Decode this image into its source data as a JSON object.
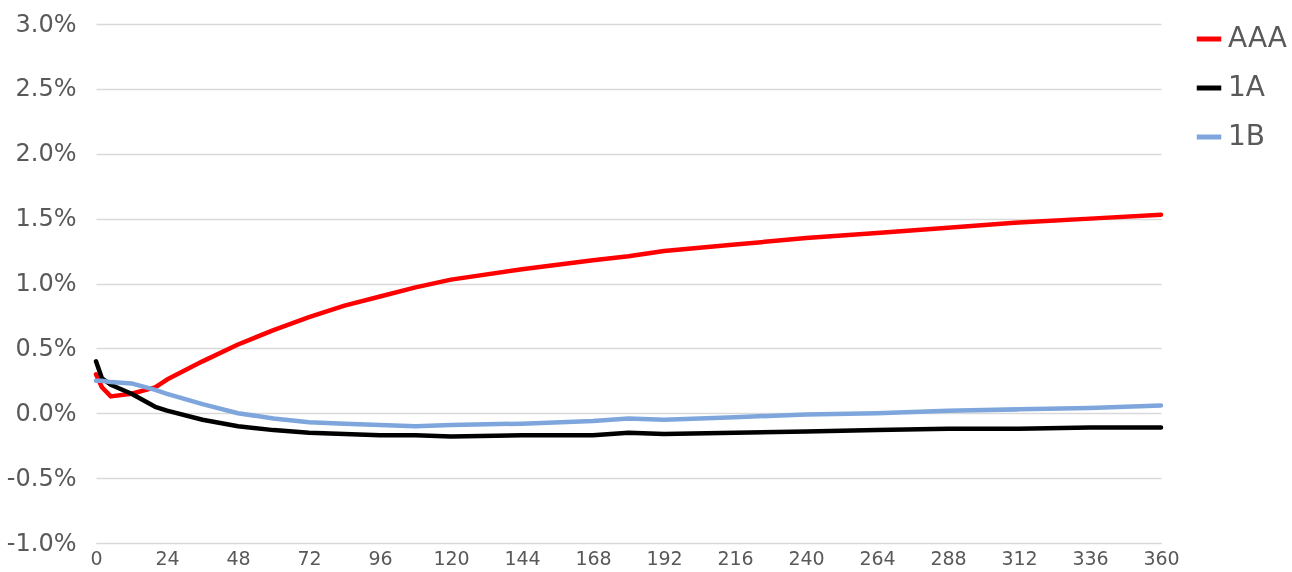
{
  "chart_data": {
    "type": "line",
    "legend": "right",
    "grid": "y",
    "line_style": "solid",
    "marker": "none",
    "xlim": [
      0,
      360
    ],
    "xticks": [
      0,
      24,
      48,
      72,
      96,
      120,
      144,
      168,
      192,
      216,
      240,
      264,
      288,
      312,
      336,
      360
    ],
    "ylim": [
      -1.0,
      3.0
    ],
    "yticks": [
      {
        "value": -1.0,
        "label": "-1.0%"
      },
      {
        "value": -0.5,
        "label": "-0.5%"
      },
      {
        "value": 0,
        "label": "0.0%"
      },
      {
        "value": 0.5,
        "label": "0.5%"
      },
      {
        "value": 1.0,
        "label": "1.0%"
      },
      {
        "value": 1.5,
        "label": "1.5%"
      },
      {
        "value": 2.0,
        "label": "2.0%"
      },
      {
        "value": 2.5,
        "label": "2.5%"
      },
      {
        "value": 3.0,
        "label": "3.0%"
      }
    ],
    "x": [
      0,
      2,
      5,
      12,
      20,
      24,
      36,
      48,
      60,
      72,
      84,
      96,
      108,
      120,
      144,
      168,
      180,
      192,
      216,
      240,
      264,
      288,
      312,
      336,
      360
    ],
    "series": [
      {
        "name": "AAA",
        "color": "#ff0000",
        "values": [
          0.3,
          0.2,
          0.13,
          0.15,
          0.2,
          0.26,
          0.4,
          0.53,
          0.64,
          0.74,
          0.83,
          0.9,
          0.97,
          1.03,
          1.11,
          1.18,
          1.21,
          1.25,
          1.3,
          1.35,
          1.39,
          1.43,
          1.47,
          1.5,
          1.53
        ]
      },
      {
        "name": "1A",
        "color": "#000000",
        "values": [
          0.4,
          0.27,
          0.22,
          0.15,
          0.05,
          0.02,
          -0.05,
          -0.1,
          -0.13,
          -0.15,
          -0.16,
          -0.17,
          -0.17,
          -0.18,
          -0.17,
          -0.17,
          -0.15,
          -0.16,
          -0.15,
          -0.14,
          -0.13,
          -0.12,
          -0.12,
          -0.11,
          -0.11
        ]
      },
      {
        "name": "1B",
        "color": "#7ea6dc",
        "values": [
          0.25,
          0.25,
          0.24,
          0.23,
          0.18,
          0.15,
          0.07,
          0.0,
          -0.04,
          -0.07,
          -0.08,
          -0.09,
          -0.1,
          -0.09,
          -0.08,
          -0.06,
          -0.04,
          -0.05,
          -0.03,
          -0.01,
          0.0,
          0.02,
          0.03,
          0.04,
          0.06
        ]
      }
    ]
  }
}
